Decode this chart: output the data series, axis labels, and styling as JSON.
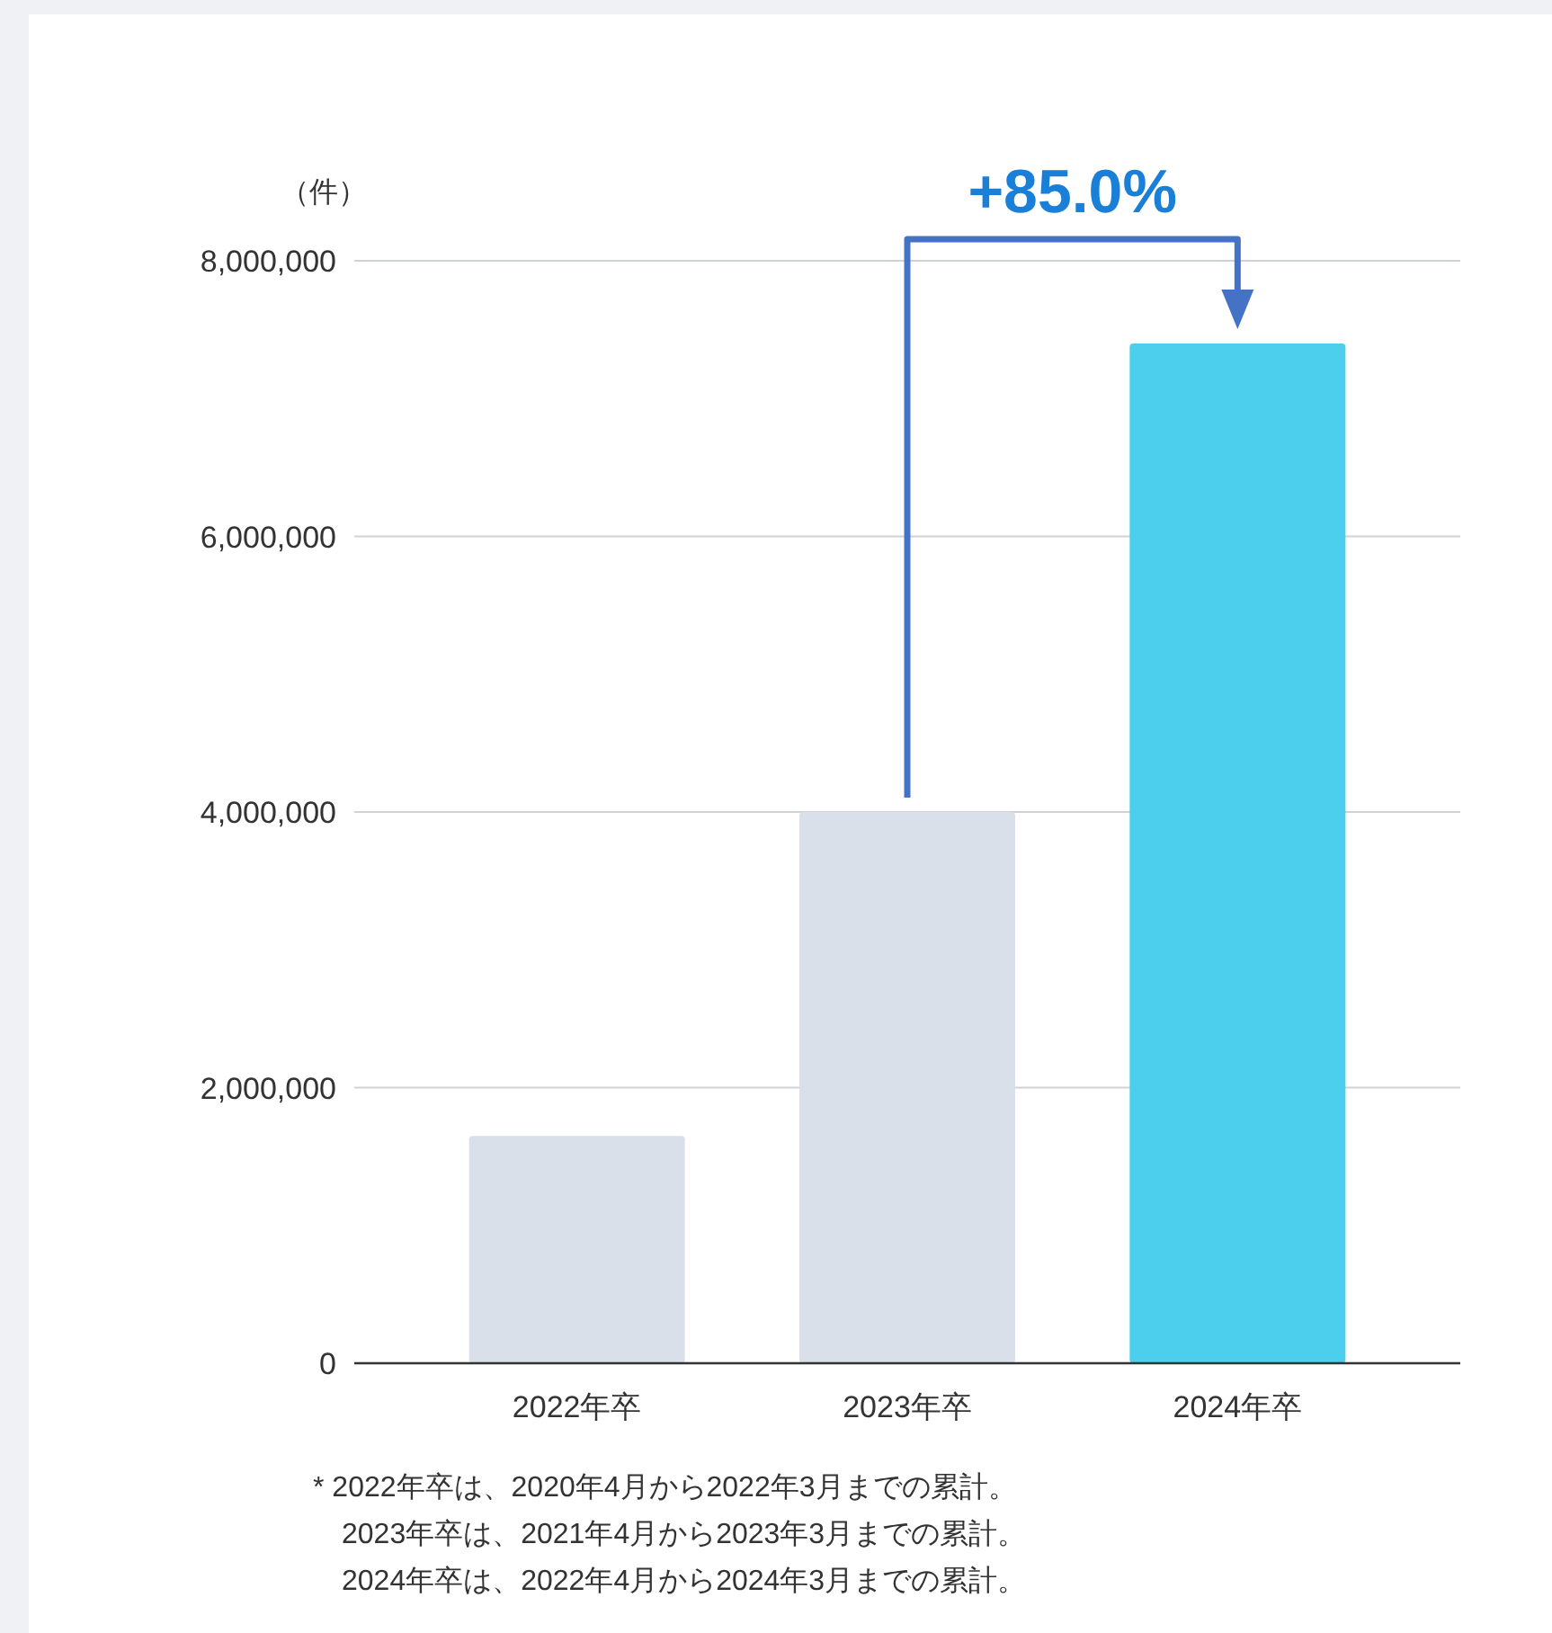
{
  "chart_data": {
    "type": "bar",
    "ylabel": "（件）",
    "categories": [
      "2022年卒",
      "2023年卒",
      "2024年卒"
    ],
    "values": [
      1650000,
      4000000,
      7400000
    ],
    "colors": [
      "#dae0ea",
      "#dae0ea",
      "#4bcfed"
    ],
    "ylim": [
      0,
      8000000
    ],
    "yticks": [
      {
        "value": 0,
        "label": "0"
      },
      {
        "value": 2000000,
        "label": "2,000,000"
      },
      {
        "value": 4000000,
        "label": "4,000,000"
      },
      {
        "value": 6000000,
        "label": "6,000,000"
      },
      {
        "value": 8000000,
        "label": "8,000,000"
      }
    ],
    "grid": "y",
    "annotations": [
      "+85.0%",
      "* 2022年卒は、2020年4月から2022年3月までの累計。",
      "2023年卒は、2021年4月から2023年3月までの累計。",
      "2024年卒は、2022年4月から2024年3月までの累計。"
    ]
  }
}
